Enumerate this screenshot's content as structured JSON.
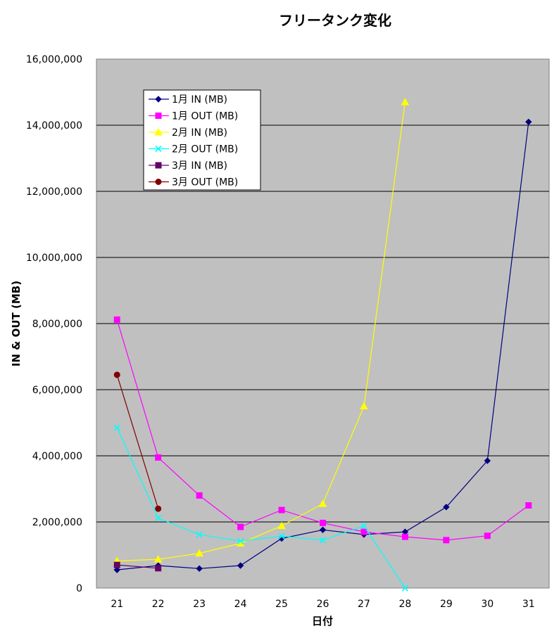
{
  "chart_data": {
    "type": "line",
    "title": "フリータンク変化",
    "xlabel": "日付",
    "ylabel": "IN & OUT (MB)",
    "ylim": [
      0,
      16000000
    ],
    "yticks": [
      "0",
      "2,000,000",
      "4,000,000",
      "6,000,000",
      "8,000,000",
      "10,000,000",
      "12,000,000",
      "14,000,000",
      "16,000,000"
    ],
    "ytick_values": [
      0,
      2000000,
      4000000,
      6000000,
      8000000,
      10000000,
      12000000,
      14000000,
      16000000
    ],
    "categories": [
      "21",
      "22",
      "23",
      "24",
      "25",
      "26",
      "27",
      "28",
      "29",
      "30",
      "31"
    ],
    "grid": true,
    "legend_position": "top-left",
    "series": [
      {
        "name": "1月 IN (MB)",
        "color": "#000080",
        "marker": "diamond",
        "values": [
          550000,
          680000,
          590000,
          680000,
          1500000,
          1760000,
          1620000,
          1700000,
          2450000,
          3850000,
          14100000
        ]
      },
      {
        "name": "1月 OUT (MB)",
        "color": "#FF00FF",
        "marker": "square",
        "values": [
          8120000,
          3950000,
          2800000,
          1850000,
          2360000,
          1970000,
          1700000,
          1550000,
          1450000,
          1580000,
          2500000
        ]
      },
      {
        "name": "2月 IN (MB)",
        "color": "#FFFF00",
        "marker": "triangle",
        "values": [
          820000,
          870000,
          1050000,
          1350000,
          1880000,
          2550000,
          5500000,
          14700000,
          null,
          null,
          null
        ]
      },
      {
        "name": "2月 OUT (MB)",
        "color": "#00FFFF",
        "marker": "x",
        "values": [
          4850000,
          2120000,
          1620000,
          1420000,
          1570000,
          1450000,
          1880000,
          0,
          null,
          null,
          null
        ]
      },
      {
        "name": "3月 IN (MB)",
        "color": "#660066",
        "marker": "square",
        "values": [
          700000,
          600000,
          null,
          null,
          null,
          null,
          null,
          null,
          null,
          null,
          null
        ]
      },
      {
        "name": "3月 OUT (MB)",
        "color": "#800000",
        "marker": "circle",
        "values": [
          6450000,
          2400000,
          null,
          null,
          null,
          null,
          null,
          null,
          null,
          null,
          null
        ]
      }
    ]
  }
}
